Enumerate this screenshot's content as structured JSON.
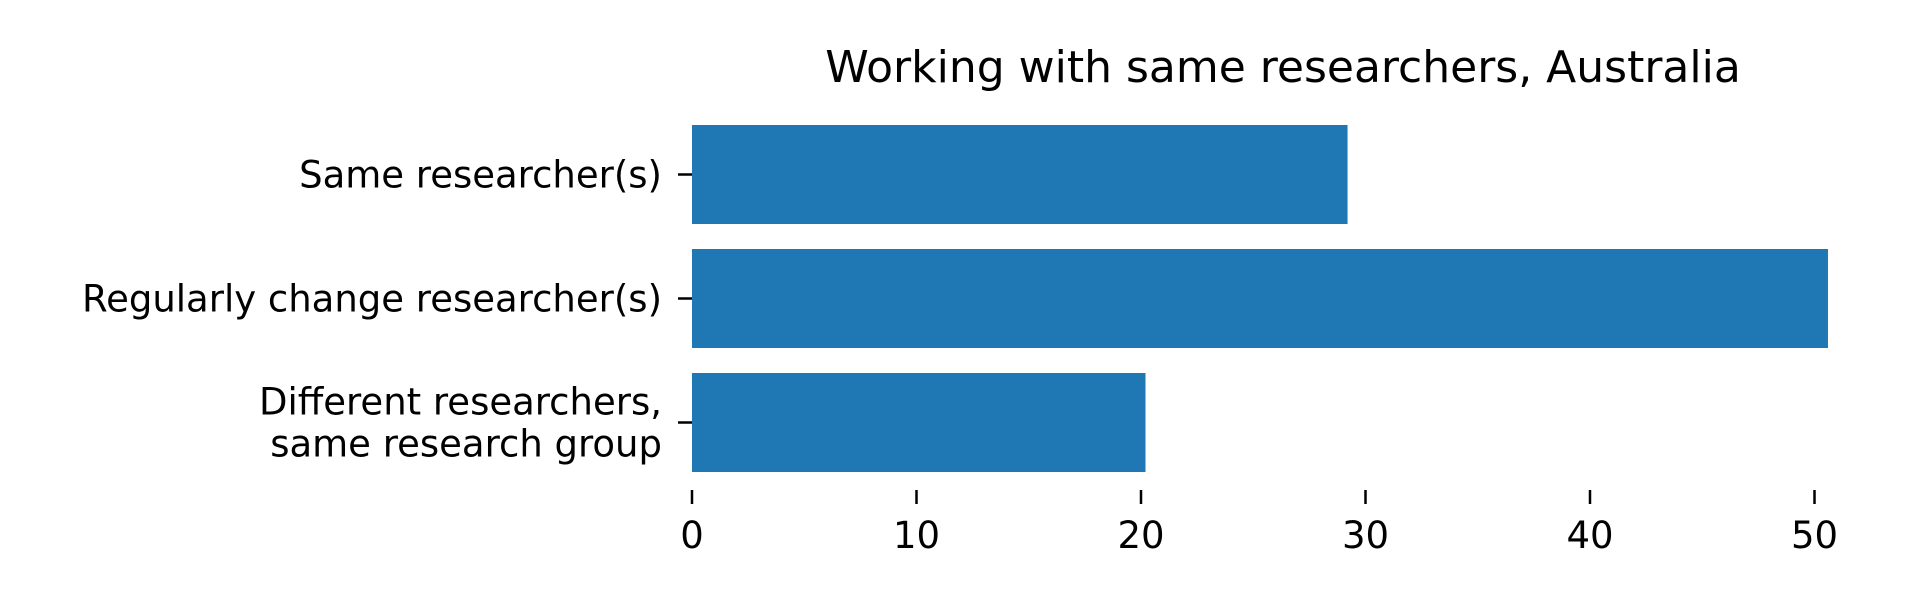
{
  "chart_data": {
    "type": "bar",
    "orientation": "horizontal",
    "title": "Working with same researchers, Australia",
    "xlabel": "",
    "ylabel": "",
    "categories": [
      [
        "Same researcher(s)"
      ],
      [
        "Regularly change researcher(s)"
      ],
      [
        "Different researchers,",
        "same research group"
      ]
    ],
    "values": [
      29.2,
      50.6,
      20.2
    ],
    "xlim": [
      0,
      52
    ],
    "xticks": [
      0,
      10,
      20,
      30,
      40,
      50
    ],
    "bar_color": "#1f77b4",
    "grid": false,
    "legend": "none"
  }
}
